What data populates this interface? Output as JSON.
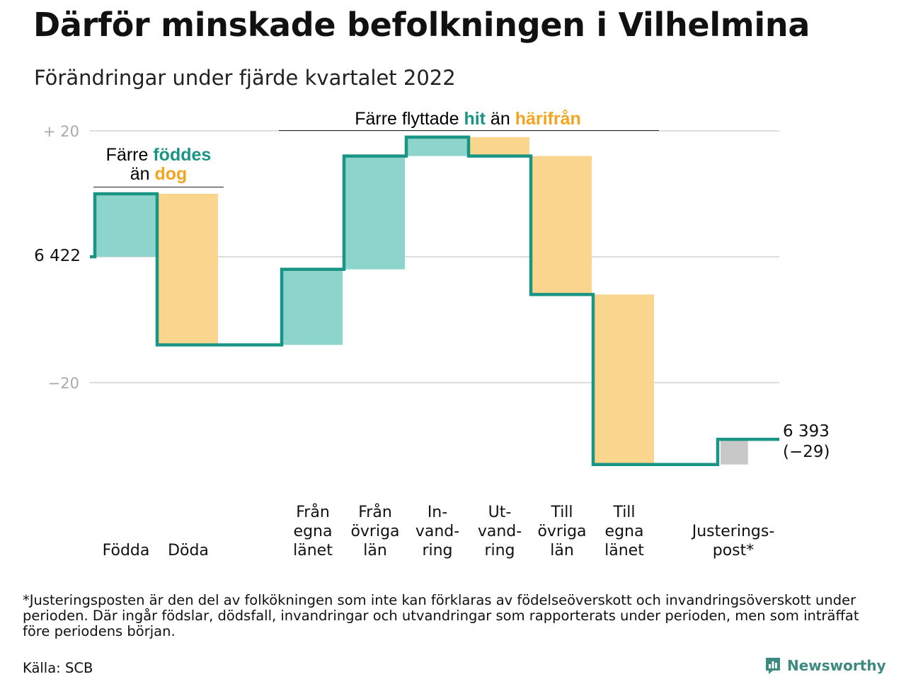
{
  "header": {
    "title": "Därför minskade befolkningen i Vilhelmina",
    "subtitle": "Förändringar under fjärde kvartalet 2022"
  },
  "colors": {
    "line": "#1a9484",
    "increase_fill": "#8dd5cc",
    "decrease_fill": "#fad58e",
    "adjustment_fill": "#c8c8c8",
    "grid": "#dddddd",
    "highlight_teal": "#1a9484",
    "highlight_orange": "#f3a51f"
  },
  "annotations": {
    "births_deaths": {
      "line1_prefix": "Färre ",
      "line1_highlight": "föddes",
      "line2_prefix": "än ",
      "line2_highlight": "dog"
    },
    "migration": {
      "prefix": "Färre flyttade ",
      "highlight1": "hit",
      "middle": " än ",
      "highlight2": "härifrån"
    }
  },
  "chart_data": {
    "type": "waterfall",
    "start_label": "6 422",
    "end_label_line1": "6 393",
    "end_label_line2": "(−29)",
    "baseline": 0,
    "ylim": [
      -33,
      20
    ],
    "yticks": [
      {
        "value": 20,
        "label": "+ 20"
      },
      {
        "value": 0,
        "label": ""
      },
      {
        "value": -20,
        "label": "−20"
      }
    ],
    "steps": [
      {
        "label_lines": [
          "Födda"
        ],
        "delta": 10,
        "kind": "increase"
      },
      {
        "label_lines": [
          "Döda"
        ],
        "delta": -24,
        "kind": "decrease"
      },
      {
        "label_lines": [],
        "delta": 0,
        "kind": "gap"
      },
      {
        "label_lines": [
          "Från",
          "egna",
          "länet"
        ],
        "delta": 12,
        "kind": "increase"
      },
      {
        "label_lines": [
          "Från",
          "övriga",
          "län"
        ],
        "delta": 18,
        "kind": "increase"
      },
      {
        "label_lines": [
          "In-",
          "vand-",
          "ring"
        ],
        "delta": 3,
        "kind": "increase"
      },
      {
        "label_lines": [
          "Ut-",
          "vand-",
          "ring"
        ],
        "delta": -3,
        "kind": "decrease"
      },
      {
        "label_lines": [
          "Till",
          "övriga",
          "län"
        ],
        "delta": -22,
        "kind": "decrease"
      },
      {
        "label_lines": [
          "Till",
          "egna",
          "länet"
        ],
        "delta": -27,
        "kind": "decrease"
      },
      {
        "label_lines": [],
        "delta": 0,
        "kind": "gap"
      },
      {
        "label_lines": [
          "Justerings-",
          "post*"
        ],
        "delta": 4,
        "kind": "adjustment"
      }
    ]
  },
  "footer": {
    "footnote": "*Justeringsposten är den del av folkökningen som inte kan förklaras av födelseöverskott och invandringsöverskott under perioden. Där ingår födslar, dödsfall, invandringar och utvandringar som rapporterats under perioden, men som inträffat före periodens början.",
    "source": "Källa: SCB",
    "brand": "Newsworthy"
  }
}
